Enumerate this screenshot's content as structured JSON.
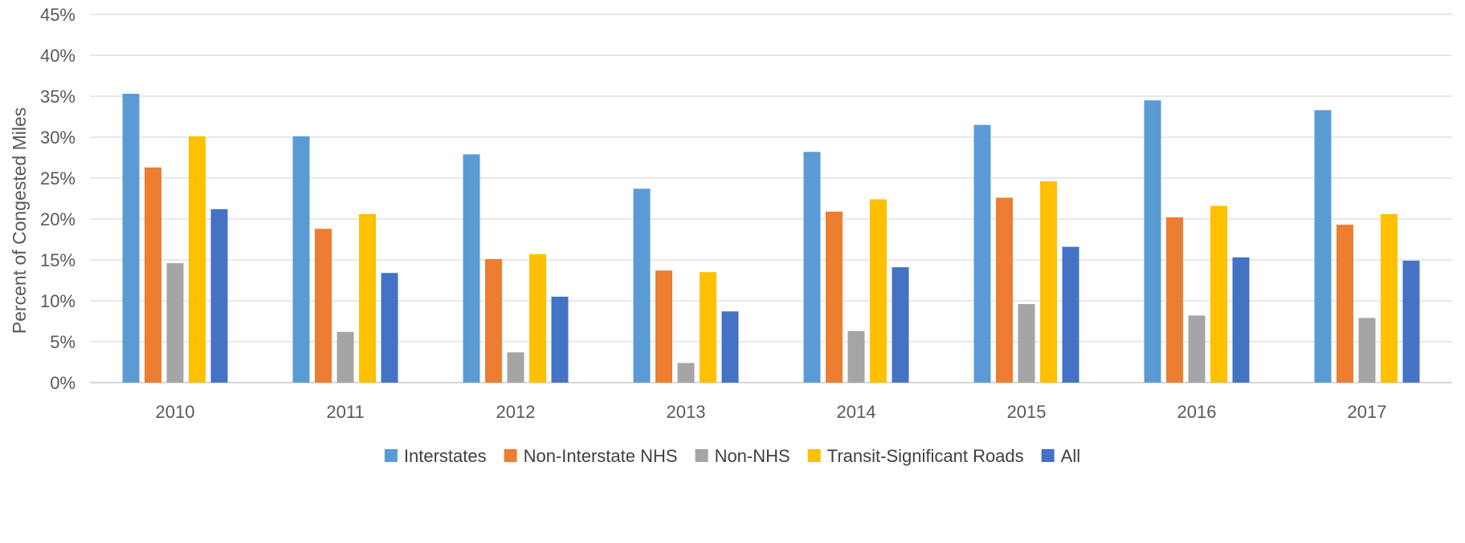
{
  "chart_data": {
    "type": "bar",
    "title": "",
    "xlabel": "",
    "ylabel": "Percent of Congested Miles",
    "ylim": [
      0,
      45
    ],
    "yticks": [
      "0%",
      "5%",
      "10%",
      "15%",
      "20%",
      "25%",
      "30%",
      "35%",
      "40%",
      "45%"
    ],
    "grid": true,
    "legend_position": "bottom",
    "categories": [
      "2010",
      "2011",
      "2012",
      "2013",
      "2014",
      "2015",
      "2016",
      "2017"
    ],
    "series": [
      {
        "name": "Interstates",
        "color": "#5B9BD5",
        "values": [
          35.3,
          30.1,
          27.9,
          23.7,
          28.2,
          31.5,
          34.5,
          33.3
        ]
      },
      {
        "name": "Non-Interstate NHS",
        "color": "#ED7D31",
        "values": [
          26.3,
          18.8,
          15.1,
          13.7,
          20.9,
          22.6,
          20.2,
          19.3
        ]
      },
      {
        "name": "Non-NHS",
        "color": "#A5A5A5",
        "values": [
          14.6,
          6.2,
          3.7,
          2.4,
          6.3,
          9.6,
          8.2,
          7.9
        ]
      },
      {
        "name": "Transit-Significant Roads",
        "color": "#FFC000",
        "values": [
          30.1,
          20.6,
          15.7,
          13.5,
          22.4,
          24.6,
          21.6,
          20.6
        ]
      },
      {
        "name": "All",
        "color": "#4472C4",
        "values": [
          21.2,
          13.4,
          10.5,
          8.7,
          14.1,
          16.6,
          15.3,
          14.9
        ]
      }
    ]
  }
}
